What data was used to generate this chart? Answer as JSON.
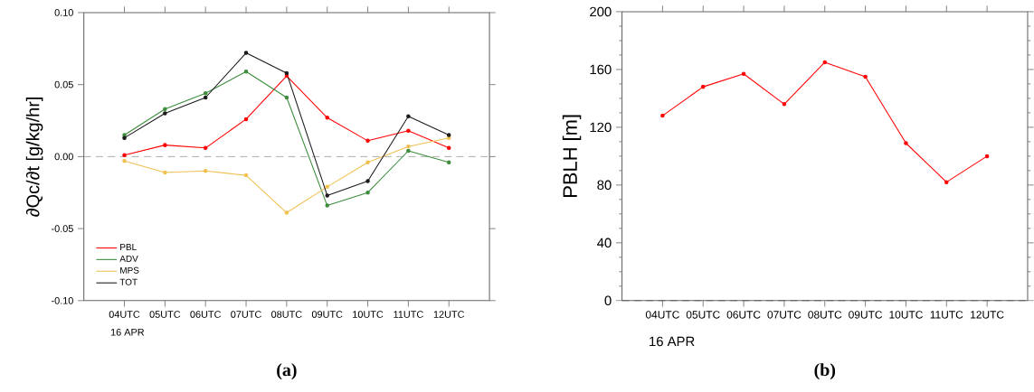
{
  "chart_data": [
    {
      "type": "line",
      "ylabel": "∂Qc/∂t [g/kg/hr]",
      "categories": [
        "04UTC",
        "05UTC",
        "06UTC",
        "07UTC",
        "08UTC",
        "09UTC",
        "10UTC",
        "11UTC",
        "12UTC"
      ],
      "series": [
        {
          "name": "PBL",
          "color": "#ff0000",
          "values": [
            0.001,
            0.008,
            0.006,
            0.026,
            0.056,
            0.027,
            0.011,
            0.018,
            0.006
          ]
        },
        {
          "name": "ADV",
          "color": "#3c8c3c",
          "values": [
            0.015,
            0.033,
            0.044,
            0.059,
            0.041,
            -0.034,
            -0.025,
            0.004,
            -0.004
          ]
        },
        {
          "name": "MPS",
          "color": "#f0c050",
          "values": [
            -0.003,
            -0.011,
            -0.01,
            -0.013,
            -0.039,
            -0.021,
            -0.004,
            0.007,
            0.013
          ]
        },
        {
          "name": "TOT",
          "color": "#1a1a1a",
          "values": [
            0.013,
            0.03,
            0.041,
            0.072,
            0.058,
            -0.027,
            -0.017,
            0.028,
            0.015
          ]
        }
      ],
      "ylim": [
        -0.1,
        0.1
      ],
      "yticks": [
        {
          "value": -0.1,
          "label": "-0.10"
        },
        {
          "value": -0.05,
          "label": "-0.05"
        },
        {
          "value": 0,
          "label": "0.00"
        },
        {
          "value": 0.05,
          "label": "0.05"
        },
        {
          "value": 0.1,
          "label": "0.10"
        }
      ],
      "ref_lines": [
        {
          "axis": "y",
          "value": 0,
          "color": "#999999",
          "line_style": "dashed"
        }
      ],
      "legend": "bottom left",
      "marker": "circle",
      "grid": false,
      "annotations": [
        "16 APR",
        "(a)"
      ]
    },
    {
      "type": "line",
      "ylabel": "PBLH [m]",
      "categories": [
        "04UTC",
        "05UTC",
        "06UTC",
        "07UTC",
        "08UTC",
        "09UTC",
        "10UTC",
        "11UTC",
        "12UTC"
      ],
      "series": [
        {
          "color": "#ff0000",
          "values": [
            128,
            148,
            157,
            136,
            165,
            155,
            109,
            82,
            100
          ]
        }
      ],
      "ylim": [
        0,
        200
      ],
      "yticks": [
        0,
        40,
        80,
        120,
        160,
        200
      ],
      "ref_lines": [
        {
          "axis": "y",
          "value": 0,
          "color": "#555555",
          "line_style": "dashed"
        }
      ],
      "legend": false,
      "marker": "circle",
      "grid": false,
      "annotations": [
        "16 APR",
        "(b)"
      ]
    }
  ]
}
